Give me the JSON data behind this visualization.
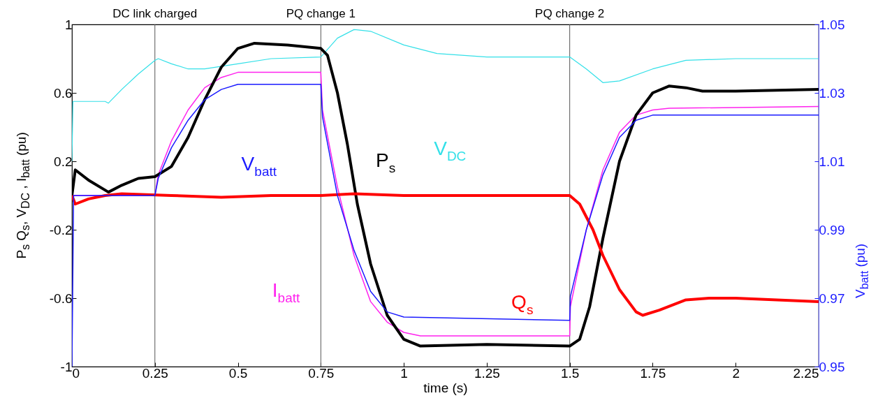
{
  "chart_data": {
    "type": "line",
    "xlabel": "time (s)",
    "ylabel": "P$_{s}$ Q$_{s}$, V$_{DC}$ , I$_{batt}$ (pu)",
    "y2label": "V$_{batt}$ (pu)",
    "xlim": [
      0,
      2.25
    ],
    "xticks": [
      0,
      0.25,
      0.5,
      0.75,
      1,
      1.25,
      1.5,
      1.75,
      2,
      2.25
    ],
    "ylim": [
      -1,
      1
    ],
    "yticks": [
      -1,
      -0.6,
      -0.2,
      0.2,
      0.6,
      1
    ],
    "y2lim": [
      0.95,
      1.05
    ],
    "y2ticks": [
      0.95,
      0.97,
      0.99,
      1.01,
      1.03,
      1.05
    ],
    "grid": false,
    "legend": false,
    "marker": "none",
    "line_style": "solid",
    "ref_lines": [
      {
        "axis": "x",
        "value": 0.25,
        "label": "DC link charged",
        "color": "#555555"
      },
      {
        "axis": "x",
        "value": 0.75,
        "label": "PQ change 1",
        "color": "#555555"
      },
      {
        "axis": "x",
        "value": 1.5,
        "label": "PQ change 2",
        "color": "#555555"
      }
    ],
    "series": [
      {
        "name": "V$_{DC}$",
        "color": "#33e0e8",
        "x": [
          0,
          0.003,
          0.1,
          0.11,
          0.15,
          0.2,
          0.25,
          0.26,
          0.3,
          0.35,
          0.4,
          0.5,
          0.6,
          0.75,
          0.8,
          0.85,
          0.9,
          1.0,
          1.1,
          1.25,
          1.5,
          1.55,
          1.6,
          1.65,
          1.75,
          1.85,
          2.0,
          2.25
        ],
        "values": [
          0.2,
          0.55,
          0.55,
          0.54,
          0.62,
          0.71,
          0.79,
          0.8,
          0.77,
          0.74,
          0.74,
          0.77,
          0.8,
          0.81,
          0.92,
          0.97,
          0.96,
          0.88,
          0.83,
          0.81,
          0.81,
          0.74,
          0.66,
          0.67,
          0.74,
          0.79,
          0.8,
          0.8
        ]
      },
      {
        "name": "I$_{batt}$",
        "color": "#ff22ee",
        "x": [
          0,
          0.25,
          0.26,
          0.3,
          0.35,
          0.4,
          0.45,
          0.5,
          0.75,
          0.755,
          0.8,
          0.85,
          0.9,
          0.95,
          1.0,
          1.05,
          1.5,
          1.502,
          1.55,
          1.6,
          1.65,
          1.7,
          1.75,
          1.8,
          2.25
        ],
        "values": [
          0,
          0,
          0.12,
          0.32,
          0.5,
          0.63,
          0.69,
          0.72,
          0.72,
          0.5,
          0.05,
          -0.35,
          -0.62,
          -0.74,
          -0.8,
          -0.82,
          -0.82,
          -0.65,
          -0.2,
          0.15,
          0.37,
          0.47,
          0.5,
          0.51,
          0.52
        ]
      },
      {
        "name": "V$_{batt}$",
        "color": "#1a1aff",
        "axis": "y2",
        "x": [
          0,
          0.005,
          0.25,
          0.26,
          0.3,
          0.35,
          0.4,
          0.45,
          0.5,
          0.75,
          0.755,
          0.8,
          0.85,
          0.9,
          0.95,
          1.0,
          1.5,
          1.502,
          1.55,
          1.6,
          1.65,
          1.7,
          1.75,
          2.25
        ],
        "values": [
          0.95,
          1.0,
          1.0,
          1.005,
          1.014,
          1.022,
          1.028,
          1.031,
          1.0325,
          1.0325,
          1.023,
          1.0,
          0.984,
          0.972,
          0.966,
          0.9645,
          0.9635,
          0.9705,
          0.99,
          1.006,
          1.017,
          1.022,
          1.0235,
          1.0235
        ]
      },
      {
        "name": "P$_{s}$",
        "color": "#000000",
        "x": [
          0,
          0.01,
          0.05,
          0.11,
          0.15,
          0.2,
          0.25,
          0.3,
          0.35,
          0.4,
          0.45,
          0.5,
          0.55,
          0.65,
          0.75,
          0.77,
          0.8,
          0.83,
          0.86,
          0.9,
          0.95,
          1.0,
          1.05,
          1.25,
          1.5,
          1.53,
          1.56,
          1.6,
          1.65,
          1.7,
          1.75,
          1.8,
          1.85,
          1.9,
          2.0,
          2.25
        ],
        "values": [
          0.0,
          0.15,
          0.09,
          0.02,
          0.06,
          0.1,
          0.11,
          0.17,
          0.34,
          0.56,
          0.75,
          0.86,
          0.89,
          0.88,
          0.86,
          0.82,
          0.6,
          0.3,
          -0.05,
          -0.4,
          -0.7,
          -0.84,
          -0.88,
          -0.87,
          -0.88,
          -0.84,
          -0.65,
          -0.25,
          0.2,
          0.47,
          0.6,
          0.64,
          0.63,
          0.61,
          0.61,
          0.62
        ]
      },
      {
        "name": "Q$_{s}$",
        "color": "#ff0000",
        "x": [
          0,
          0.01,
          0.05,
          0.1,
          0.15,
          0.3,
          0.45,
          0.6,
          0.75,
          0.85,
          1.0,
          1.5,
          1.53,
          1.57,
          1.6,
          1.65,
          1.7,
          1.72,
          1.77,
          1.85,
          1.92,
          2.0,
          2.25
        ],
        "values": [
          0,
          -0.05,
          -0.02,
          0.0,
          0.01,
          0.0,
          -0.01,
          0.0,
          0.0,
          0.01,
          0.0,
          0.0,
          -0.05,
          -0.2,
          -0.35,
          -0.55,
          -0.68,
          -0.7,
          -0.67,
          -0.61,
          -0.6,
          -0.6,
          -0.62
        ]
      }
    ]
  }
}
